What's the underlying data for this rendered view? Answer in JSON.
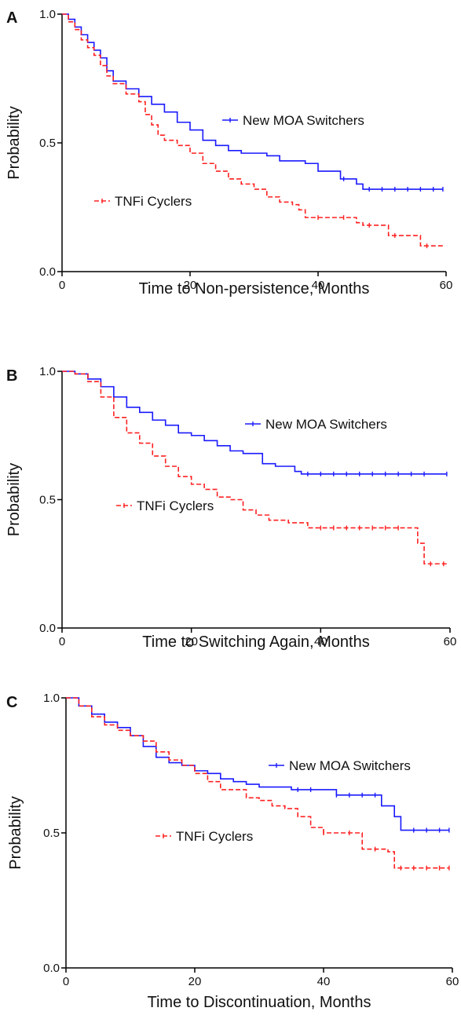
{
  "chart_data": [
    {
      "panel": "A",
      "type": "line",
      "xlabel": "Time to Non-persistence, Months",
      "ylabel": "Probability",
      "xlim": [
        0,
        60
      ],
      "ylim": [
        0,
        1
      ],
      "xticks": [
        "0",
        "20",
        "40",
        "60"
      ],
      "yticks": [
        "0.0",
        "0.5",
        "1.0"
      ],
      "grid": false,
      "series": [
        {
          "name": "New MOA Switchers",
          "color": "#1a1aff",
          "style": "solid",
          "points": [
            [
              0,
              1.0
            ],
            [
              1,
              0.98
            ],
            [
              2,
              0.95
            ],
            [
              3,
              0.92
            ],
            [
              4,
              0.89
            ],
            [
              5,
              0.86
            ],
            [
              6,
              0.83
            ],
            [
              7,
              0.78
            ],
            [
              8,
              0.74
            ],
            [
              10,
              0.71
            ],
            [
              12,
              0.68
            ],
            [
              14,
              0.65
            ],
            [
              16,
              0.62
            ],
            [
              18,
              0.58
            ],
            [
              20,
              0.55
            ],
            [
              22,
              0.51
            ],
            [
              24,
              0.49
            ],
            [
              26,
              0.47
            ],
            [
              28,
              0.46
            ],
            [
              30,
              0.46
            ],
            [
              32,
              0.45
            ],
            [
              34,
              0.43
            ],
            [
              36,
              0.43
            ],
            [
              38,
              0.42
            ],
            [
              40,
              0.39
            ],
            [
              43,
              0.39
            ],
            [
              43.5,
              0.36
            ],
            [
              46,
              0.34
            ],
            [
              47,
              0.32
            ],
            [
              52,
              0.32
            ],
            [
              59.5,
              0.32
            ]
          ],
          "censor_x": [
            44,
            48,
            50,
            52,
            54,
            56,
            58,
            59.5
          ]
        },
        {
          "name": "TNFi Cyclers",
          "color": "#ff2020",
          "style": "dashed",
          "points": [
            [
              0,
              1.0
            ],
            [
              1,
              0.97
            ],
            [
              2,
              0.94
            ],
            [
              3,
              0.9
            ],
            [
              4,
              0.87
            ],
            [
              5,
              0.84
            ],
            [
              6,
              0.8
            ],
            [
              7,
              0.76
            ],
            [
              8,
              0.73
            ],
            [
              10,
              0.69
            ],
            [
              12,
              0.66
            ],
            [
              13,
              0.61
            ],
            [
              14,
              0.57
            ],
            [
              15,
              0.53
            ],
            [
              16,
              0.51
            ],
            [
              18,
              0.49
            ],
            [
              20,
              0.46
            ],
            [
              22,
              0.42
            ],
            [
              24,
              0.39
            ],
            [
              26,
              0.36
            ],
            [
              28,
              0.34
            ],
            [
              30,
              0.32
            ],
            [
              32,
              0.29
            ],
            [
              34,
              0.27
            ],
            [
              36,
              0.26
            ],
            [
              37,
              0.24
            ],
            [
              38,
              0.21
            ],
            [
              42,
              0.21
            ],
            [
              46,
              0.19
            ],
            [
              47,
              0.18
            ],
            [
              50,
              0.18
            ],
            [
              51,
              0.14
            ],
            [
              55,
              0.14
            ],
            [
              56,
              0.1
            ],
            [
              59.5,
              0.1
            ]
          ],
          "censor_x": [
            40,
            44,
            48,
            52,
            57
          ]
        }
      ]
    },
    {
      "panel": "B",
      "type": "line",
      "xlabel": "Time to Switching Again, Months",
      "ylabel": "Probability",
      "xlim": [
        0,
        60
      ],
      "ylim": [
        0,
        1
      ],
      "xticks": [
        "0",
        "20",
        "40",
        "60"
      ],
      "yticks": [
        "0.0",
        "0.5",
        "1.0"
      ],
      "grid": false,
      "series": [
        {
          "name": "New MOA Switchers",
          "color": "#1a1aff",
          "style": "solid",
          "points": [
            [
              0,
              1.0
            ],
            [
              2,
              0.99
            ],
            [
              4,
              0.97
            ],
            [
              6,
              0.94
            ],
            [
              8,
              0.9
            ],
            [
              10,
              0.86
            ],
            [
              12,
              0.84
            ],
            [
              14,
              0.81
            ],
            [
              16,
              0.79
            ],
            [
              18,
              0.76
            ],
            [
              20,
              0.75
            ],
            [
              22,
              0.73
            ],
            [
              24,
              0.71
            ],
            [
              26,
              0.69
            ],
            [
              28,
              0.68
            ],
            [
              30,
              0.68
            ],
            [
              31,
              0.64
            ],
            [
              33,
              0.63
            ],
            [
              36,
              0.61
            ],
            [
              37,
              0.6
            ],
            [
              59.5,
              0.6
            ]
          ],
          "censor_x": [
            38,
            40,
            42,
            44,
            46,
            48,
            50,
            52,
            54,
            56,
            59.5
          ]
        },
        {
          "name": "TNFi Cyclers",
          "color": "#ff2020",
          "style": "dashed",
          "points": [
            [
              0,
              1.0
            ],
            [
              2,
              0.99
            ],
            [
              4,
              0.96
            ],
            [
              6,
              0.9
            ],
            [
              8,
              0.82
            ],
            [
              10,
              0.76
            ],
            [
              12,
              0.72
            ],
            [
              14,
              0.67
            ],
            [
              16,
              0.63
            ],
            [
              18,
              0.59
            ],
            [
              20,
              0.56
            ],
            [
              22,
              0.54
            ],
            [
              24,
              0.51
            ],
            [
              26,
              0.5
            ],
            [
              28,
              0.46
            ],
            [
              30,
              0.44
            ],
            [
              32,
              0.42
            ],
            [
              35,
              0.41
            ],
            [
              38,
              0.39
            ],
            [
              54,
              0.39
            ],
            [
              55,
              0.33
            ],
            [
              56,
              0.25
            ],
            [
              59.5,
              0.25
            ]
          ],
          "censor_x": [
            40,
            42,
            44,
            46,
            48,
            50,
            52,
            57,
            59
          ]
        }
      ]
    },
    {
      "panel": "C",
      "type": "line",
      "xlabel": "Time to Discontinuation, Months",
      "ylabel": "Probability",
      "xlim": [
        0,
        60
      ],
      "ylim": [
        0,
        1
      ],
      "xticks": [
        "0",
        "20",
        "40",
        "60"
      ],
      "yticks": [
        "0.0",
        "0.5",
        "1.0"
      ],
      "grid": false,
      "series": [
        {
          "name": "New MOA Switchers",
          "color": "#1a1aff",
          "style": "solid",
          "points": [
            [
              0,
              1.0
            ],
            [
              2,
              0.97
            ],
            [
              4,
              0.94
            ],
            [
              6,
              0.91
            ],
            [
              8,
              0.89
            ],
            [
              10,
              0.86
            ],
            [
              12,
              0.82
            ],
            [
              14,
              0.78
            ],
            [
              16,
              0.76
            ],
            [
              18,
              0.75
            ],
            [
              20,
              0.73
            ],
            [
              22,
              0.72
            ],
            [
              24,
              0.7
            ],
            [
              26,
              0.69
            ],
            [
              28,
              0.68
            ],
            [
              30,
              0.67
            ],
            [
              32,
              0.67
            ],
            [
              35,
              0.66
            ],
            [
              40,
              0.66
            ],
            [
              42,
              0.64
            ],
            [
              46,
              0.64
            ],
            [
              49,
              0.6
            ],
            [
              51,
              0.56
            ],
            [
              52,
              0.51
            ],
            [
              59.5,
              0.51
            ]
          ],
          "censor_x": [
            36,
            38,
            42,
            44,
            46,
            48,
            54,
            56,
            58,
            59.5
          ]
        },
        {
          "name": "TNFi Cyclers",
          "color": "#ff2020",
          "style": "dashed",
          "points": [
            [
              0,
              1.0
            ],
            [
              2,
              0.97
            ],
            [
              4,
              0.93
            ],
            [
              6,
              0.9
            ],
            [
              8,
              0.88
            ],
            [
              10,
              0.86
            ],
            [
              12,
              0.84
            ],
            [
              14,
              0.8
            ],
            [
              16,
              0.77
            ],
            [
              18,
              0.75
            ],
            [
              20,
              0.72
            ],
            [
              22,
              0.69
            ],
            [
              24,
              0.66
            ],
            [
              26,
              0.66
            ],
            [
              28,
              0.63
            ],
            [
              30,
              0.62
            ],
            [
              32,
              0.6
            ],
            [
              34,
              0.59
            ],
            [
              36,
              0.56
            ],
            [
              38,
              0.52
            ],
            [
              40,
              0.5
            ],
            [
              42,
              0.5
            ],
            [
              46,
              0.44
            ],
            [
              50,
              0.43
            ],
            [
              51,
              0.37
            ],
            [
              59.5,
              0.37
            ]
          ],
          "censor_x": [
            40,
            44,
            48,
            52,
            54,
            56,
            58,
            59.5
          ]
        }
      ]
    }
  ]
}
